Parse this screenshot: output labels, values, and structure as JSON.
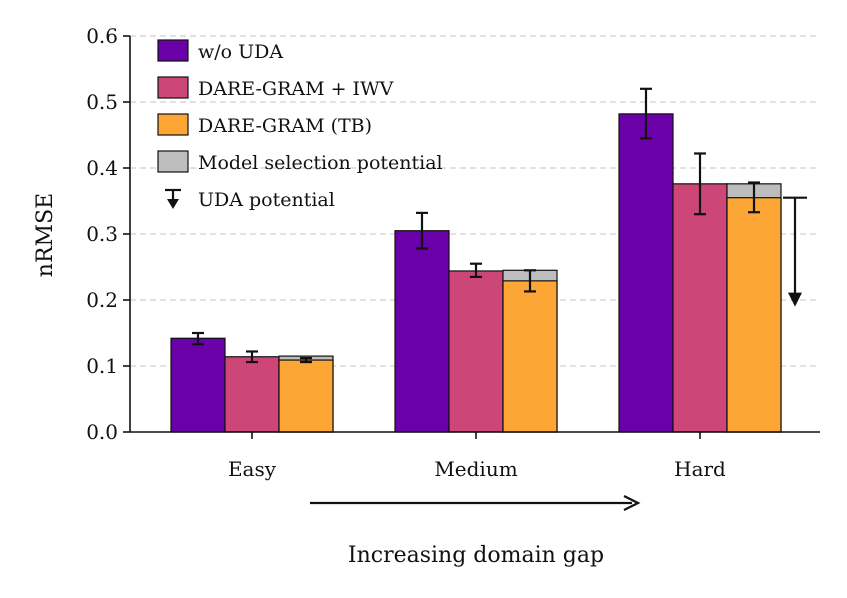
{
  "chart_data": {
    "type": "bar",
    "title": "",
    "xlabel": "Increasing domain gap",
    "ylabel": "nRMSE",
    "categories": [
      "Easy",
      "Medium",
      "Hard"
    ],
    "ylim": [
      0,
      0.6
    ],
    "yticks": [
      "0.0",
      "0.1",
      "0.2",
      "0.3",
      "0.4",
      "0.5",
      "0.6"
    ],
    "grid": true,
    "legend_position": "top-left",
    "series": [
      {
        "name": "w/o UDA",
        "color": "#6a00a8",
        "values": [
          0.142,
          0.305,
          0.482
        ],
        "err_low": [
          0.133,
          0.278,
          0.445
        ],
        "err_high": [
          0.15,
          0.332,
          0.52
        ]
      },
      {
        "name": "DARE-GRAM + IWV",
        "color": "#cc4778",
        "values": [
          0.114,
          0.244,
          0.376
        ],
        "err_low": [
          0.106,
          0.235,
          0.33
        ],
        "err_high": [
          0.122,
          0.255,
          0.422
        ]
      },
      {
        "name": "DARE-GRAM (TB)",
        "color": "#fca636",
        "values": [
          0.109,
          0.229,
          0.355
        ],
        "err_low": [
          0.106,
          0.213,
          0.333
        ],
        "err_high": [
          0.112,
          0.245,
          0.378
        ]
      }
    ],
    "model_selection_potential": {
      "label": "Model selection potential",
      "color": "#bdbdbd",
      "top_values": [
        0.115,
        0.245,
        0.376
      ]
    },
    "uda_potential": {
      "label": "UDA potential",
      "category": "Hard",
      "from": 0.355,
      "to": 0.19
    },
    "domain_gap_arrow": true
  }
}
